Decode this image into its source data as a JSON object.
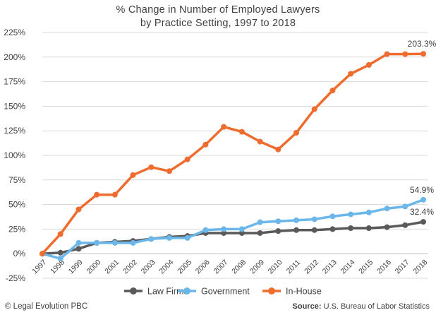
{
  "title_line1": "% Change in Number of Employed Lawyers",
  "title_line2": "by Practice Setting, 1997 to 2018",
  "footer": {
    "copyright": "© Legal Evolution PBC",
    "source_label": "Source:",
    "source_text": "U.S. Bureau of Labor Statistics"
  },
  "chart_data": {
    "type": "line",
    "title": "% Change in Number of Employed Lawyers by Practice Setting, 1997 to 2018",
    "x": [
      "1997",
      "1998",
      "1999",
      "2000",
      "2001",
      "2002",
      "2003",
      "2004",
      "2005",
      "2006",
      "2007",
      "2008",
      "2009",
      "2010",
      "2011",
      "2012",
      "2013",
      "2014",
      "2015",
      "2016",
      "2017",
      "2018"
    ],
    "ylim": [
      -25,
      225
    ],
    "yticks": [
      "-25%",
      "0%",
      "25%",
      "50%",
      "75%",
      "100%",
      "125%",
      "150%",
      "175%",
      "200%",
      "225%"
    ],
    "ytick_values": [
      -25,
      0,
      25,
      50,
      75,
      100,
      125,
      150,
      175,
      200,
      225
    ],
    "grid": "horizontal",
    "legend": "bottom",
    "series": [
      {
        "name": "Law Firms",
        "color": "#595959",
        "values": [
          0,
          1,
          5,
          11,
          12,
          13,
          15,
          17,
          18,
          21,
          21,
          21,
          21,
          23,
          24,
          24,
          25,
          26,
          26,
          27,
          29,
          32.4
        ],
        "end_label": "32.4%"
      },
      {
        "name": "Government",
        "color": "#6cb7ea",
        "values": [
          0,
          -5,
          11,
          11,
          11,
          11,
          15,
          16,
          16,
          24,
          25,
          25,
          32,
          33,
          34,
          35,
          38,
          40,
          42,
          46,
          48,
          54.9
        ],
        "end_label": "54.9%"
      },
      {
        "name": "In-House",
        "color": "#ef6c2f",
        "values": [
          0,
          20,
          45,
          60,
          60,
          80,
          88,
          84,
          96,
          111,
          129,
          124,
          114,
          106,
          123,
          147,
          166,
          183,
          192,
          203,
          203,
          203.3
        ],
        "end_label": "203.3%"
      }
    ]
  }
}
